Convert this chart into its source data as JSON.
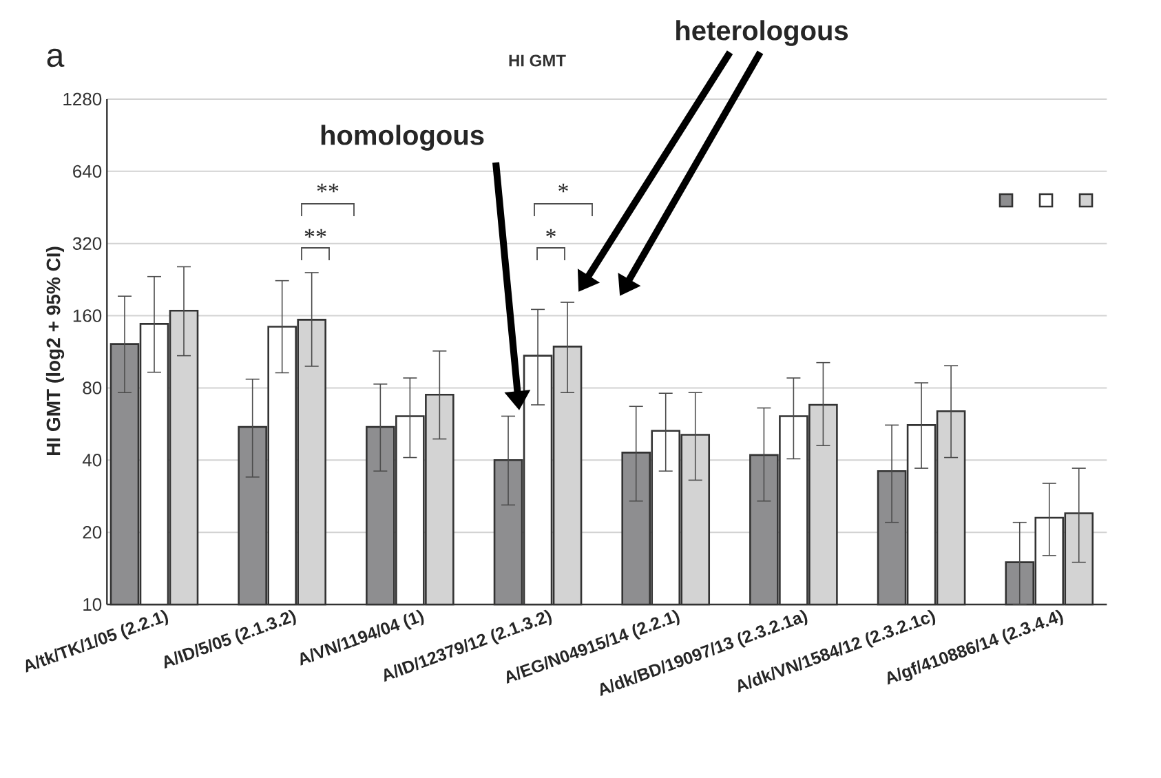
{
  "chart_data": {
    "type": "bar",
    "title": "HI GMT",
    "ylabel": "HI GMT (log2 + 95% CI)",
    "categories": [
      "A/tk/TK/1/05 (2.2.1)",
      "A/ID/5/05 (2.1.3.2)",
      "A/VN/1194/04 (1)",
      "A/ID/12379/12 (2.1.3.2)",
      "A/EG/N04915/14 (2.2.1)",
      "A/dk/BD/19097/13 (2.3.2.1a)",
      "A/dk/VN/1584/12 (2.3.2.1c)",
      "A/gf/410886/14 (2.3.4.4)"
    ],
    "series": [
      {
        "color": "#8e8e90",
        "values": [
          122,
          55,
          55,
          40,
          43,
          42,
          36,
          15
        ],
        "errors": [
          [
            76.5,
            193
          ],
          [
            34,
            87
          ],
          [
            36,
            83
          ],
          [
            26,
            61
          ],
          [
            27,
            67
          ],
          [
            27,
            66
          ],
          [
            22,
            56
          ],
          [
            10,
            22
          ]
        ]
      },
      {
        "color": "#ffffff",
        "values": [
          148,
          144,
          61,
          109,
          53,
          61,
          56,
          23
        ],
        "errors": [
          [
            93,
            233
          ],
          [
            92.5,
            224
          ],
          [
            41,
            88
          ],
          [
            68,
            170
          ],
          [
            36,
            76
          ],
          [
            40.5,
            88
          ],
          [
            37,
            84
          ],
          [
            16,
            32
          ]
        ]
      },
      {
        "color": "#d3d3d3",
        "values": [
          168,
          154,
          75,
          119,
          51,
          68,
          64,
          24
        ],
        "errors": [
          [
            109,
            256
          ],
          [
            98.5,
            242
          ],
          [
            49,
            114
          ],
          [
            76.5,
            182
          ],
          [
            33,
            76.5
          ],
          [
            46,
            102
          ],
          [
            41,
            99
          ],
          [
            15,
            37
          ]
        ]
      }
    ],
    "log": "y",
    "ylim": [
      10,
      1280
    ],
    "yticks": [
      10,
      20,
      40,
      80,
      160,
      320,
      640,
      1280
    ],
    "grid": "y",
    "annotations": [
      "a",
      "homologous",
      "heterologous",
      "**",
      "**",
      "*",
      "*"
    ]
  }
}
